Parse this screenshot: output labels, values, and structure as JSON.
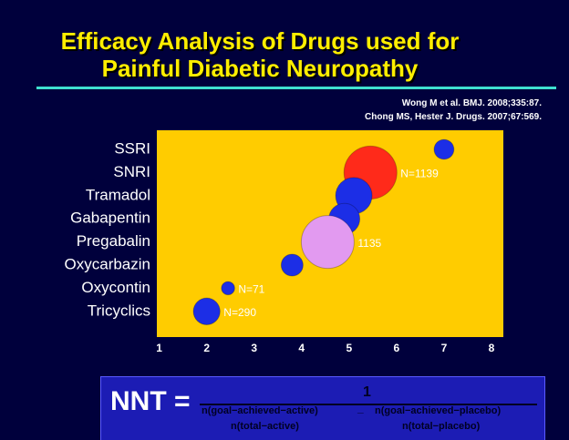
{
  "chart_data": {
    "type": "bubble",
    "title": "Efficacy Analysis of Drugs used for Painful Diabetic Neuropathy",
    "citations": [
      "Wong M et al. BMJ. 2008;335:87.",
      "Chong MS, Hester J. Drugs. 2007;67:569."
    ],
    "categories": [
      "SSRI",
      "SNRI",
      "Tramadol",
      "Gabapentin",
      "Pregabalin",
      "Oxycarbazin",
      "Oxycontin",
      "Tricyclics"
    ],
    "x": [
      7.0,
      5.45,
      5.1,
      4.9,
      4.55,
      3.8,
      2.45,
      2.0
    ],
    "sizes": [
      160,
      1139,
      540,
      390,
      1135,
      195,
      71,
      290
    ],
    "value_labels": [
      null,
      "N=1139",
      null,
      null,
      "1135",
      null,
      "N=71",
      "N=290"
    ],
    "colors": [
      "#1c2ee6",
      "#ff2a1a",
      "#1c2ee6",
      "#1c2ee6",
      "#e29af0",
      "#1c2ee6",
      "#1c2ee6",
      "#1c2ee6"
    ],
    "xlim": [
      0.95,
      8.25
    ],
    "xticks": [
      1,
      2,
      3,
      4,
      5,
      6,
      7,
      8
    ]
  },
  "formula": {
    "lhs": "NNT =",
    "numerator": "1",
    "term_active": "n(goal−achieved−active)",
    "minus": "_",
    "term_placebo": "n(goal−achieved−placebo)",
    "total_active": "n(total−active)",
    "total_placebo": "n(total−placebo)"
  }
}
